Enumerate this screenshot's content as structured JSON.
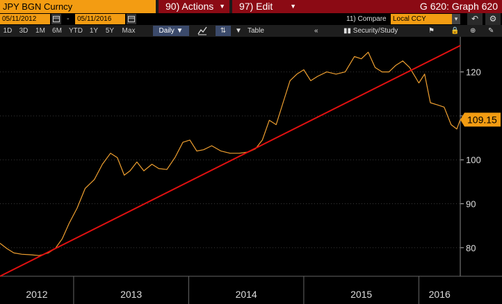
{
  "ticker": "JPY BGN Curncy",
  "menus": {
    "actions": "90) Actions",
    "edit": "97) Edit"
  },
  "graph_title": "G 620: Graph 620",
  "dates": {
    "start": "05/11/2012",
    "end": "05/11/2016"
  },
  "compare": {
    "label": "11) Compare",
    "currency": "Local CCY"
  },
  "toolbar": {
    "ranges": [
      "1D",
      "3D",
      "1M",
      "6M",
      "YTD",
      "1Y",
      "5Y",
      "Max"
    ],
    "frequency": "Daily",
    "table_label": "Table",
    "security_label": "Security/Study"
  },
  "colors": {
    "accent": "#f39c12",
    "menu_red": "#8b0a14",
    "line": "#f0a030",
    "trend": "#e01010"
  },
  "chart_data": {
    "type": "line",
    "series_color": "#f0a030",
    "last_value": "109.15",
    "ylim": [
      73.5,
      128
    ],
    "y_ticks": [
      "80",
      "90",
      "100",
      "110",
      "120"
    ],
    "x_ticks": [
      "2012",
      "2013",
      "2014",
      "2015",
      "2016"
    ],
    "x_range": [
      2012.36,
      2016.36
    ],
    "points": [
      [
        2012.36,
        81.0
      ],
      [
        2012.42,
        79.8
      ],
      [
        2012.48,
        78.8
      ],
      [
        2012.55,
        78.5
      ],
      [
        2012.62,
        78.4
      ],
      [
        2012.7,
        78.2
      ],
      [
        2012.78,
        78.8
      ],
      [
        2012.84,
        79.8
      ],
      [
        2012.9,
        82.0
      ],
      [
        2012.96,
        85.5
      ],
      [
        2013.03,
        89.0
      ],
      [
        2013.1,
        93.5
      ],
      [
        2013.18,
        95.5
      ],
      [
        2013.25,
        99.0
      ],
      [
        2013.32,
        101.5
      ],
      [
        2013.38,
        100.5
      ],
      [
        2013.44,
        96.5
      ],
      [
        2013.49,
        97.5
      ],
      [
        2013.55,
        99.5
      ],
      [
        2013.61,
        97.5
      ],
      [
        2013.68,
        99.0
      ],
      [
        2013.74,
        98.0
      ],
      [
        2013.81,
        97.8
      ],
      [
        2013.88,
        100.5
      ],
      [
        2013.95,
        104.0
      ],
      [
        2014.01,
        104.5
      ],
      [
        2014.07,
        102.0
      ],
      [
        2014.13,
        102.3
      ],
      [
        2014.2,
        103.2
      ],
      [
        2014.28,
        102.0
      ],
      [
        2014.36,
        101.5
      ],
      [
        2014.44,
        101.5
      ],
      [
        2014.52,
        101.8
      ],
      [
        2014.58,
        102.5
      ],
      [
        2014.64,
        104.5
      ],
      [
        2014.7,
        109.0
      ],
      [
        2014.76,
        108.0
      ],
      [
        2014.82,
        113.0
      ],
      [
        2014.88,
        118.0
      ],
      [
        2014.94,
        119.5
      ],
      [
        2015.0,
        120.5
      ],
      [
        2015.06,
        118.0
      ],
      [
        2015.12,
        119.0
      ],
      [
        2015.2,
        120.0
      ],
      [
        2015.28,
        119.5
      ],
      [
        2015.36,
        120.0
      ],
      [
        2015.44,
        123.5
      ],
      [
        2015.5,
        123.0
      ],
      [
        2015.56,
        124.5
      ],
      [
        2015.62,
        121.0
      ],
      [
        2015.68,
        120.0
      ],
      [
        2015.74,
        120.0
      ],
      [
        2015.8,
        121.5
      ],
      [
        2015.86,
        122.5
      ],
      [
        2015.92,
        121.0
      ],
      [
        2016.0,
        117.5
      ],
      [
        2016.05,
        119.5
      ],
      [
        2016.1,
        113.0
      ],
      [
        2016.16,
        112.5
      ],
      [
        2016.22,
        112.0
      ],
      [
        2016.28,
        108.0
      ],
      [
        2016.33,
        107.0
      ],
      [
        2016.36,
        109.15
      ]
    ],
    "trendline": [
      [
        2012.36,
        73.5
      ],
      [
        2016.36,
        126.0
      ]
    ]
  }
}
